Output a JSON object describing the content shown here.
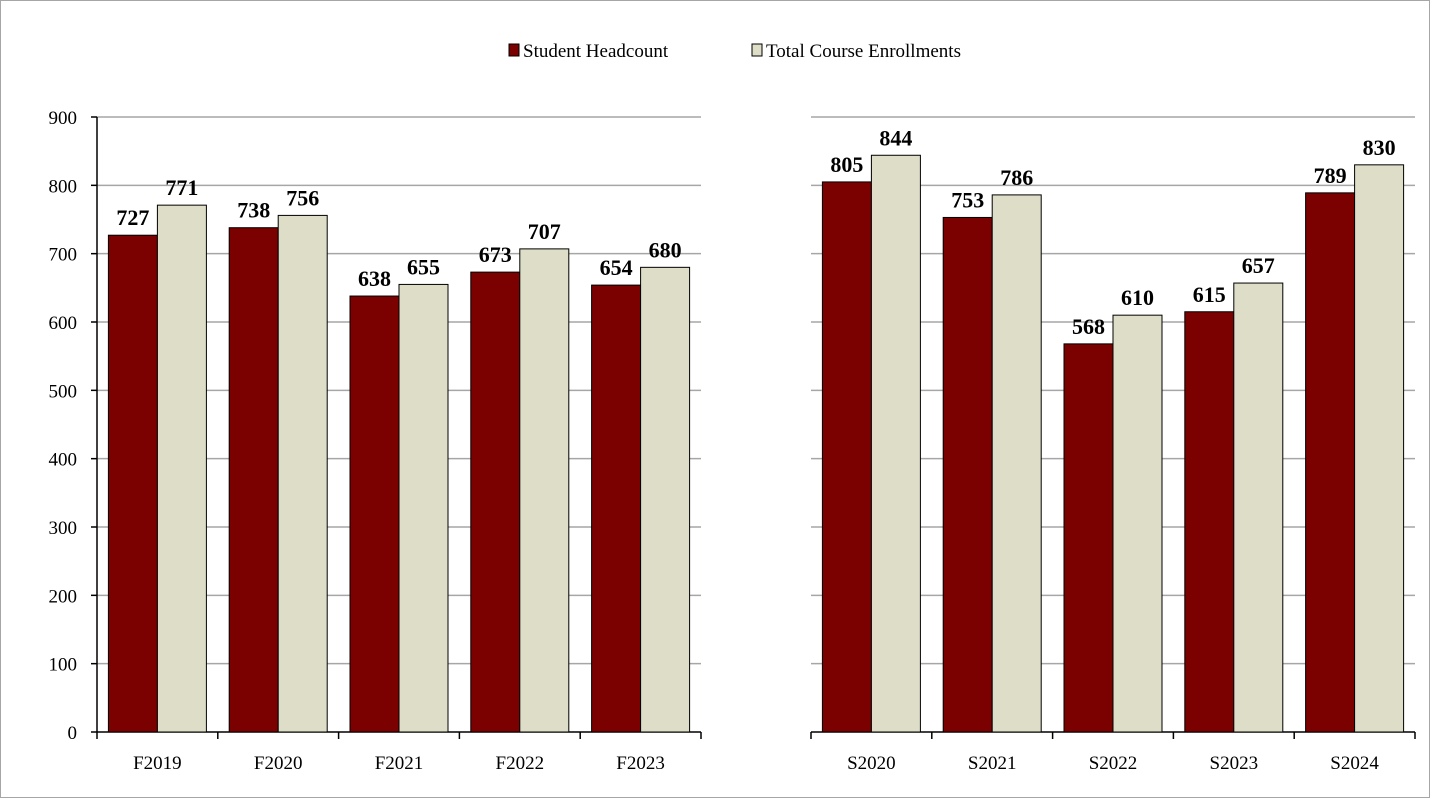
{
  "legend": {
    "series": [
      {
        "name": "Student Headcount",
        "color": "#7b0000"
      },
      {
        "name": "Total Course Enrollments",
        "color": "#dedec8"
      }
    ]
  },
  "chart_data": [
    {
      "type": "bar",
      "categories": [
        "F2019",
        "F2020",
        "F2021",
        "F2022",
        "F2023"
      ],
      "series": [
        {
          "name": "Student Headcount",
          "values": [
            727,
            738,
            638,
            673,
            654
          ]
        },
        {
          "name": "Total Course Enrollments",
          "values": [
            771,
            756,
            655,
            707,
            680
          ]
        }
      ],
      "ylim": [
        0,
        900
      ],
      "yticks": [
        0,
        100,
        200,
        300,
        400,
        500,
        600,
        700,
        800,
        900
      ],
      "grid": true,
      "legend_position": "top-center"
    },
    {
      "type": "bar",
      "categories": [
        "S2020",
        "S2021",
        "S2022",
        "S2023",
        "S2024"
      ],
      "series": [
        {
          "name": "Student Headcount",
          "values": [
            805,
            753,
            568,
            615,
            789
          ]
        },
        {
          "name": "Total Course Enrollments",
          "values": [
            844,
            786,
            610,
            657,
            830
          ]
        }
      ],
      "ylim": [
        0,
        900
      ],
      "grid": true,
      "legend_position": "top-center"
    }
  ]
}
